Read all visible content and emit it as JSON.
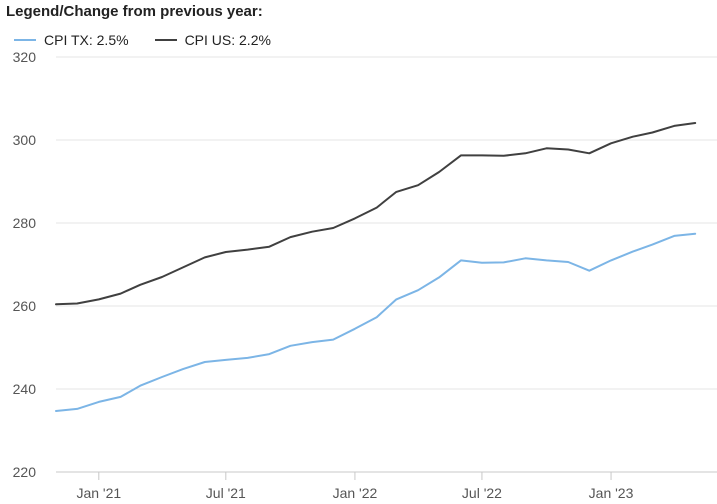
{
  "legend": {
    "title": "Legend/Change from previous year:",
    "items": [
      {
        "label": "CPI TX: 2.5%",
        "color": "#7cb5e6"
      },
      {
        "label": "CPI US: 2.2%",
        "color": "#404040"
      }
    ]
  },
  "chart_data": {
    "type": "line",
    "title": "",
    "xlabel": "",
    "ylabel": "",
    "ylim": [
      220,
      320
    ],
    "yticks": [
      220,
      240,
      260,
      280,
      300,
      320
    ],
    "xlim": [
      "2020-11-01",
      "2023-06-01"
    ],
    "xticks": [
      {
        "label": "Jan '21",
        "date": "2021-01-01"
      },
      {
        "label": "Jul '21",
        "date": "2021-07-01"
      },
      {
        "label": "Jan '22",
        "date": "2022-01-01"
      },
      {
        "label": "Jul '22",
        "date": "2022-07-01"
      },
      {
        "label": "Jan '23",
        "date": "2023-01-01"
      }
    ],
    "grid": {
      "horizontal": true,
      "vertical": false
    },
    "legend_position": "top-left",
    "x": [
      "2020-11",
      "2020-12",
      "2021-01",
      "2021-02",
      "2021-03",
      "2021-04",
      "2021-05",
      "2021-06",
      "2021-07",
      "2021-08",
      "2021-09",
      "2021-10",
      "2021-11",
      "2021-12",
      "2022-01",
      "2022-02",
      "2022-03",
      "2022-04",
      "2022-05",
      "2022-06",
      "2022-07",
      "2022-08",
      "2022-09",
      "2022-10",
      "2022-11",
      "2022-12",
      "2023-01",
      "2023-02",
      "2023-03",
      "2023-04",
      "2023-05"
    ],
    "series": [
      {
        "name": "CPI TX: 2.5%",
        "color": "#7cb5e6",
        "values": [
          234.7,
          235.2,
          236.9,
          238.1,
          240.8,
          242.9,
          244.8,
          246.5,
          247.0,
          247.5,
          248.4,
          250.4,
          251.3,
          251.9,
          254.5,
          257.3,
          261.6,
          263.8,
          266.9,
          271.0,
          270.4,
          270.5,
          271.5,
          271.0,
          270.6,
          268.5,
          271.0,
          273.1,
          274.8,
          276.9,
          277.4
        ]
      },
      {
        "name": "CPI US: 2.2%",
        "color": "#404040",
        "values": [
          260.4,
          260.6,
          261.6,
          263.0,
          265.1,
          267.0,
          269.3,
          271.7,
          273.0,
          273.6,
          274.3,
          276.6,
          277.9,
          278.8,
          281.1,
          283.7,
          287.5,
          289.1,
          292.3,
          296.3,
          296.3,
          296.2,
          296.8,
          298.0,
          297.7,
          296.8,
          299.2,
          300.8,
          301.8,
          303.4,
          304.1
        ]
      }
    ]
  }
}
